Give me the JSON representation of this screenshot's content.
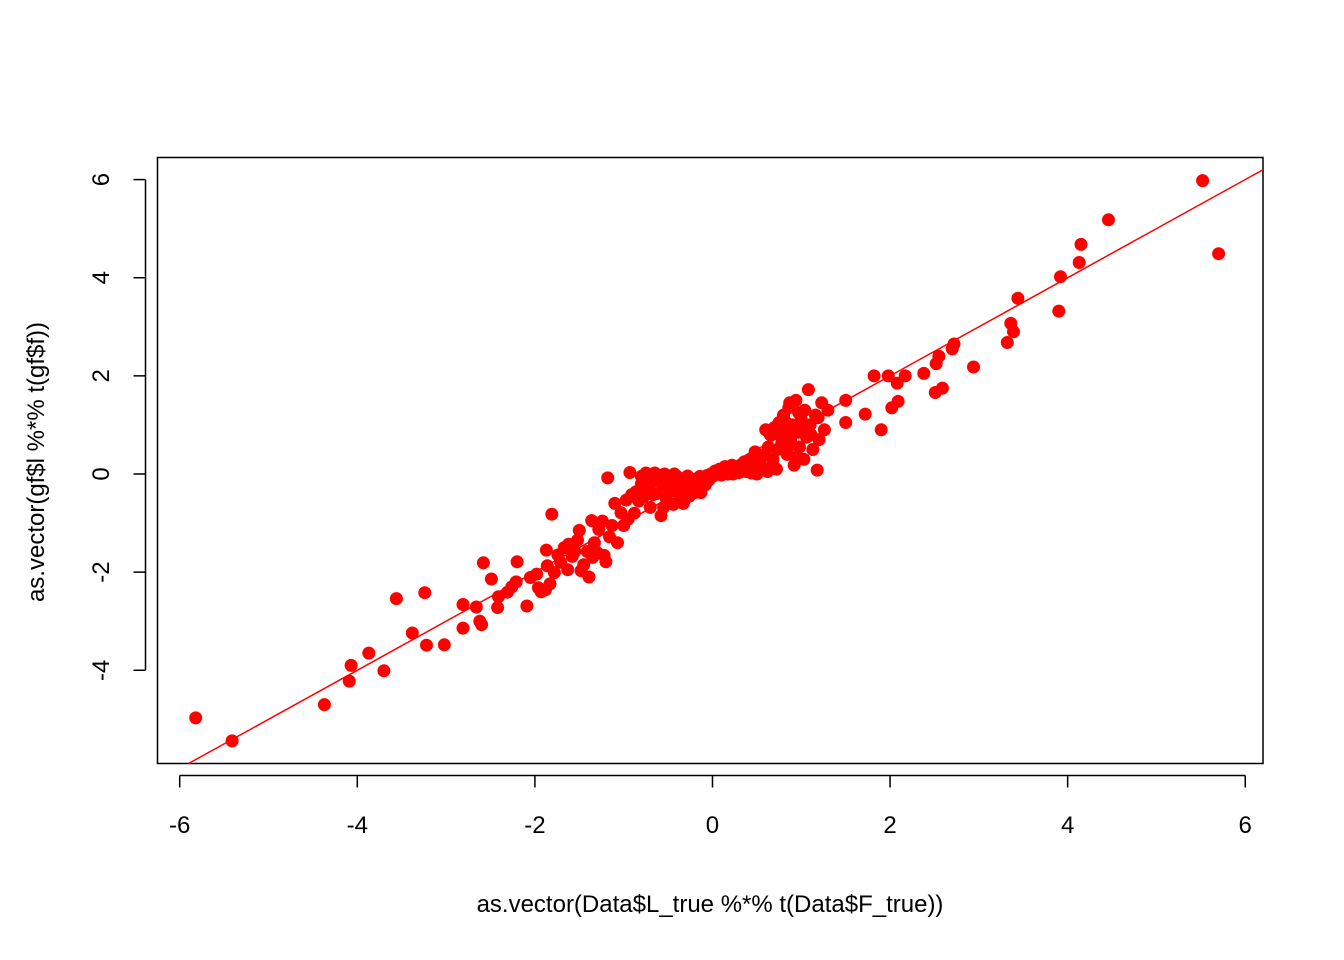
{
  "chart_data": {
    "type": "scatter",
    "title": "",
    "xlabel": "as.vector(Data$L_true %*% t(Data$F_true))",
    "ylabel": "as.vector(gf$l %*% t(gf$f))",
    "xlim": [
      -6.25,
      6.2
    ],
    "ylim": [
      -5.9,
      6.45
    ],
    "x_ticks": [
      -6,
      -4,
      -2,
      0,
      2,
      4,
      6
    ],
    "x_tick_labels": [
      "-6",
      "-4",
      "-2",
      "0",
      "2",
      "4",
      "6"
    ],
    "y_ticks": [
      -4,
      -2,
      0,
      2,
      4,
      6
    ],
    "y_tick_labels": [
      "-4",
      "-2",
      "0",
      "2",
      "4",
      "6"
    ],
    "grid": false,
    "legend": "none",
    "point_color": "#ff0000",
    "line_color": "#ff0000",
    "regression_line": {
      "intercept": 0.0,
      "slope": 1.0
    },
    "series": [
      {
        "points": [
          [
            -5.82,
            -4.97
          ],
          [
            -5.41,
            -5.44
          ],
          [
            -4.37,
            -4.7
          ],
          [
            -4.09,
            -4.22
          ],
          [
            -4.07,
            -3.9
          ],
          [
            -3.87,
            -3.65
          ],
          [
            -3.7,
            -4.01
          ],
          [
            -3.56,
            -2.54
          ],
          [
            -3.38,
            -3.24
          ],
          [
            -3.22,
            -3.49
          ],
          [
            -3.24,
            -2.42
          ],
          [
            -3.02,
            -3.48
          ],
          [
            -2.81,
            -3.14
          ],
          [
            -2.81,
            -2.66
          ],
          [
            -2.66,
            -2.71
          ],
          [
            -2.6,
            -3.07
          ],
          [
            -2.62,
            -3.0
          ],
          [
            -2.58,
            -1.81
          ],
          [
            -2.49,
            -2.14
          ],
          [
            -2.42,
            -2.72
          ],
          [
            -2.41,
            -2.5
          ],
          [
            -2.31,
            -2.41
          ],
          [
            -2.26,
            -2.3
          ],
          [
            -2.21,
            -2.2
          ],
          [
            -2.2,
            -1.79
          ],
          [
            -2.09,
            -2.69
          ],
          [
            -2.05,
            -2.11
          ],
          [
            -1.98,
            -2.04
          ],
          [
            -1.96,
            -2.32
          ],
          [
            -1.93,
            -2.4
          ],
          [
            -1.88,
            -2.36
          ],
          [
            -1.86,
            -1.87
          ],
          [
            -1.83,
            -2.24
          ],
          [
            -1.81,
            -0.82
          ],
          [
            -1.78,
            -2.01
          ],
          [
            -1.74,
            -1.65
          ],
          [
            -1.71,
            -1.8
          ],
          [
            -1.67,
            -1.5
          ],
          [
            -1.62,
            -1.43
          ],
          [
            -1.58,
            -1.68
          ],
          [
            -1.55,
            -1.58
          ],
          [
            -1.5,
            -1.15
          ],
          [
            -1.48,
            -1.97
          ],
          [
            -1.45,
            -1.85
          ],
          [
            -1.41,
            -1.58
          ],
          [
            -1.39,
            -2.1
          ],
          [
            -1.36,
            -0.95
          ],
          [
            -1.33,
            -1.4
          ],
          [
            -1.3,
            -1.6
          ],
          [
            -1.28,
            -1.13
          ],
          [
            -1.24,
            -0.96
          ],
          [
            -1.22,
            -1.66
          ],
          [
            -1.2,
            -1.79
          ],
          [
            -1.16,
            -1.28
          ],
          [
            -1.13,
            -1.05
          ],
          [
            -1.1,
            -0.6
          ],
          [
            -1.07,
            -1.4
          ],
          [
            -1.03,
            -0.79
          ],
          [
            -1.0,
            -1.05
          ],
          [
            -0.97,
            -0.53
          ],
          [
            -0.95,
            -0.92
          ],
          [
            -0.91,
            -0.42
          ],
          [
            -0.88,
            -0.8
          ],
          [
            -0.86,
            -0.36
          ],
          [
            -0.83,
            -0.55
          ],
          [
            -0.8,
            -0.2
          ],
          [
            -0.78,
            -0.47
          ],
          [
            -0.75,
            0.02
          ],
          [
            -0.73,
            -0.3
          ],
          [
            -0.7,
            -0.68
          ],
          [
            -0.68,
            -0.15
          ],
          [
            -0.65,
            0.02
          ],
          [
            -0.63,
            -0.4
          ],
          [
            -0.61,
            -0.1
          ],
          [
            -0.58,
            -0.85
          ],
          [
            -0.56,
            -0.25
          ],
          [
            -0.54,
            0.0
          ],
          [
            -0.52,
            -0.5
          ],
          [
            -0.5,
            -0.2
          ],
          [
            -0.48,
            -0.05
          ],
          [
            -0.46,
            -0.35
          ],
          [
            -0.44,
            -0.62
          ],
          [
            -0.42,
            -0.15
          ],
          [
            -0.4,
            -0.05
          ],
          [
            -0.38,
            -0.4
          ],
          [
            -0.36,
            -0.3
          ],
          [
            -0.34,
            -0.1
          ],
          [
            -0.32,
            -0.55
          ],
          [
            -0.3,
            -0.2
          ],
          [
            -0.28,
            -0.04
          ],
          [
            -0.26,
            -0.45
          ],
          [
            -0.24,
            -0.28
          ],
          [
            -0.22,
            -0.12
          ],
          [
            -0.2,
            -0.38
          ],
          [
            -0.18,
            -0.1
          ],
          [
            -0.16,
            -0.25
          ],
          [
            -0.14,
            -0.05
          ],
          [
            -0.12,
            -0.18
          ],
          [
            -0.1,
            -0.08
          ],
          [
            -0.08,
            -0.22
          ],
          [
            -0.06,
            -0.03
          ],
          [
            -0.04,
            -0.12
          ],
          [
            -0.02,
            0.0
          ],
          [
            0.0,
            -0.05
          ],
          [
            0.03,
            0.06
          ],
          [
            0.05,
            0.0
          ],
          [
            0.08,
            0.1
          ],
          [
            0.11,
            0.02
          ],
          [
            0.14,
            0.15
          ],
          [
            0.17,
            0.0
          ],
          [
            0.2,
            0.08
          ],
          [
            0.23,
            0.0
          ],
          [
            0.26,
            0.12
          ],
          [
            0.3,
            0.03
          ],
          [
            0.34,
            0.2
          ],
          [
            0.38,
            0.05
          ],
          [
            0.42,
            0.3
          ],
          [
            0.46,
            0.1
          ],
          [
            0.5,
            0.0
          ],
          [
            0.54,
            0.22
          ],
          [
            0.58,
            0.4
          ],
          [
            0.62,
            0.05
          ],
          [
            0.65,
            0.8
          ],
          [
            0.68,
            0.3
          ],
          [
            0.7,
            0.95
          ],
          [
            0.73,
            0.5
          ],
          [
            0.75,
            1.05
          ],
          [
            0.78,
            0.62
          ],
          [
            0.8,
            1.2
          ],
          [
            0.82,
            0.85
          ],
          [
            0.84,
            0.4
          ],
          [
            0.86,
            1.35
          ],
          [
            0.88,
            0.7
          ],
          [
            0.9,
            1.0
          ],
          [
            0.92,
            0.18
          ],
          [
            0.94,
            1.5
          ],
          [
            0.96,
            0.85
          ],
          [
            0.98,
            0.55
          ],
          [
            1.0,
            1.1
          ],
          [
            1.02,
            0.95
          ],
          [
            1.04,
            1.3
          ],
          [
            1.06,
            0.75
          ],
          [
            1.08,
            1.72
          ],
          [
            1.1,
            1.0
          ],
          [
            1.13,
            0.5
          ],
          [
            1.16,
            1.2
          ],
          [
            1.18,
            0.08
          ],
          [
            1.2,
            0.7
          ],
          [
            1.23,
            1.45
          ],
          [
            1.26,
            0.9
          ],
          [
            1.3,
            1.3
          ],
          [
            0.22,
            0.18
          ],
          [
            0.36,
            0.25
          ],
          [
            0.52,
            0.12
          ],
          [
            0.6,
            0.9
          ],
          [
            0.68,
            0.18
          ],
          [
            0.76,
            0.78
          ],
          [
            0.83,
            1.05
          ],
          [
            0.89,
            0.6
          ],
          [
            0.97,
            1.25
          ],
          [
            1.5,
            1.5
          ],
          [
            1.5,
            1.05
          ],
          [
            1.72,
            1.22
          ],
          [
            1.82,
            2.0
          ],
          [
            1.9,
            0.9
          ],
          [
            1.98,
            2.0
          ],
          [
            2.02,
            1.35
          ],
          [
            2.08,
            1.85
          ],
          [
            2.09,
            1.48
          ],
          [
            2.17,
            2.0
          ],
          [
            2.38,
            2.05
          ],
          [
            2.51,
            1.66
          ],
          [
            2.52,
            2.25
          ],
          [
            2.55,
            2.4
          ],
          [
            2.59,
            1.75
          ],
          [
            2.7,
            2.55
          ],
          [
            2.72,
            2.65
          ],
          [
            2.94,
            2.18
          ],
          [
            3.32,
            2.68
          ],
          [
            3.36,
            3.07
          ],
          [
            3.39,
            2.9
          ],
          [
            3.44,
            3.58
          ],
          [
            3.9,
            3.32
          ],
          [
            3.92,
            4.02
          ],
          [
            4.13,
            4.31
          ],
          [
            4.15,
            4.68
          ],
          [
            4.46,
            5.18
          ],
          [
            5.52,
            5.98
          ],
          [
            5.7,
            4.49
          ],
          [
            -1.87,
            -1.55
          ],
          [
            -1.63,
            -1.95
          ],
          [
            -1.52,
            -1.35
          ],
          [
            -1.35,
            -1.7
          ],
          [
            -1.18,
            -0.08
          ],
          [
            -0.93,
            0.03
          ],
          [
            -0.8,
            -0.05
          ],
          [
            -0.67,
            -0.42
          ],
          [
            -0.55,
            -0.68
          ],
          [
            -0.43,
            0.0
          ],
          [
            -0.33,
            -0.6
          ],
          [
            -0.23,
            -0.15
          ],
          [
            -0.13,
            -0.38
          ],
          [
            0.1,
            -0.02
          ],
          [
            0.27,
            0.08
          ],
          [
            0.44,
            0.02
          ],
          [
            0.48,
            0.45
          ],
          [
            0.56,
            0.1
          ],
          [
            0.63,
            0.55
          ],
          [
            0.72,
            0.1
          ],
          [
            0.87,
            1.45
          ],
          [
            0.95,
            0.35
          ],
          [
            1.03,
            0.3
          ],
          [
            1.11,
            0.8
          ],
          [
            1.19,
            1.15
          ]
        ]
      }
    ]
  }
}
